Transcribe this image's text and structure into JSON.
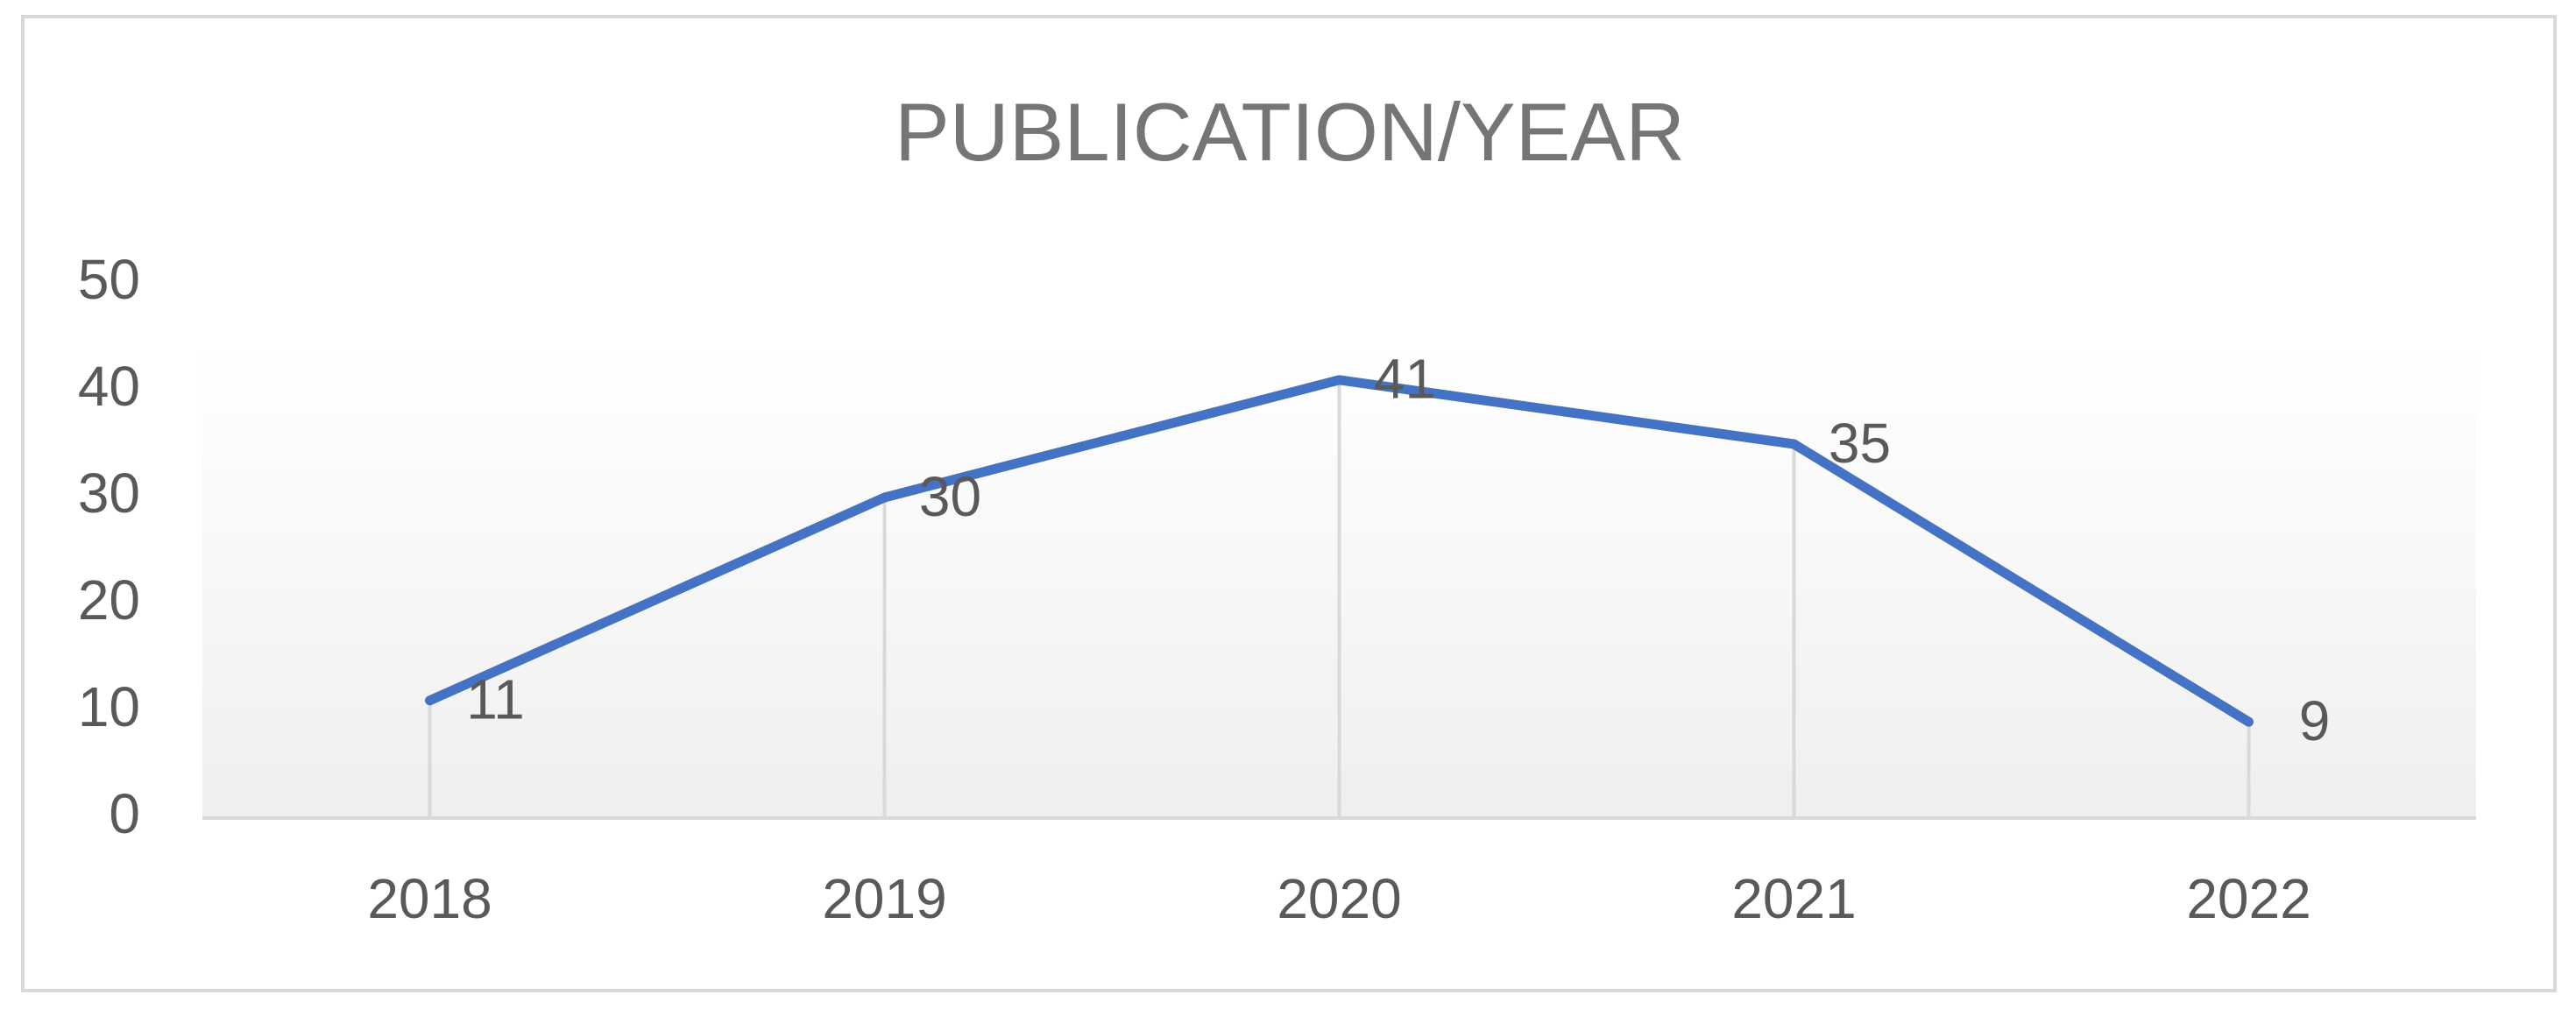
{
  "chart_data": {
    "type": "line",
    "title": "PUBLICATION/YEAR",
    "categories": [
      "2018",
      "2019",
      "2020",
      "2021",
      "2022"
    ],
    "values": [
      11,
      30,
      41,
      35,
      9
    ],
    "color": "#4472c4",
    "ylim": [
      0,
      50
    ],
    "yticks": [
      0,
      10,
      20,
      30,
      40,
      50
    ],
    "grid": false,
    "drop_lines": true,
    "data_labels": true
  }
}
